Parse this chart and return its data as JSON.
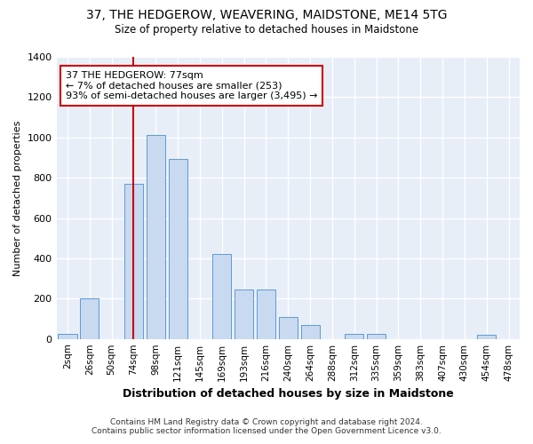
{
  "title": "37, THE HEDGEROW, WEAVERING, MAIDSTONE, ME14 5TG",
  "subtitle": "Size of property relative to detached houses in Maidstone",
  "xlabel": "Distribution of detached houses by size in Maidstone",
  "ylabel": "Number of detached properties",
  "categories": [
    "2sqm",
    "26sqm",
    "50sqm",
    "74sqm",
    "98sqm",
    "121sqm",
    "145sqm",
    "169sqm",
    "193sqm",
    "216sqm",
    "240sqm",
    "264sqm",
    "288sqm",
    "312sqm",
    "335sqm",
    "359sqm",
    "383sqm",
    "407sqm",
    "430sqm",
    "454sqm",
    "478sqm"
  ],
  "values": [
    25,
    200,
    0,
    770,
    1010,
    895,
    0,
    420,
    245,
    245,
    110,
    70,
    0,
    25,
    25,
    0,
    0,
    0,
    0,
    20,
    0
  ],
  "bar_color": "#c9d9f0",
  "bar_edge_color": "#5b9bd5",
  "vline_index": 3,
  "vline_color": "#cc0000",
  "annotation_line1": "37 THE HEDGEROW: 77sqm",
  "annotation_line2": "← 7% of detached houses are smaller (253)",
  "annotation_line3": "93% of semi-detached houses are larger (3,495) →",
  "annotation_box_fc": "#ffffff",
  "annotation_box_ec": "#cc0000",
  "ylim": [
    0,
    1400
  ],
  "yticks": [
    0,
    200,
    400,
    600,
    800,
    1000,
    1200,
    1400
  ],
  "footnote1": "Contains HM Land Registry data © Crown copyright and database right 2024.",
  "footnote2": "Contains public sector information licensed under the Open Government Licence v3.0.",
  "fig_bg": "#ffffff",
  "plot_bg": "#e8eef8"
}
